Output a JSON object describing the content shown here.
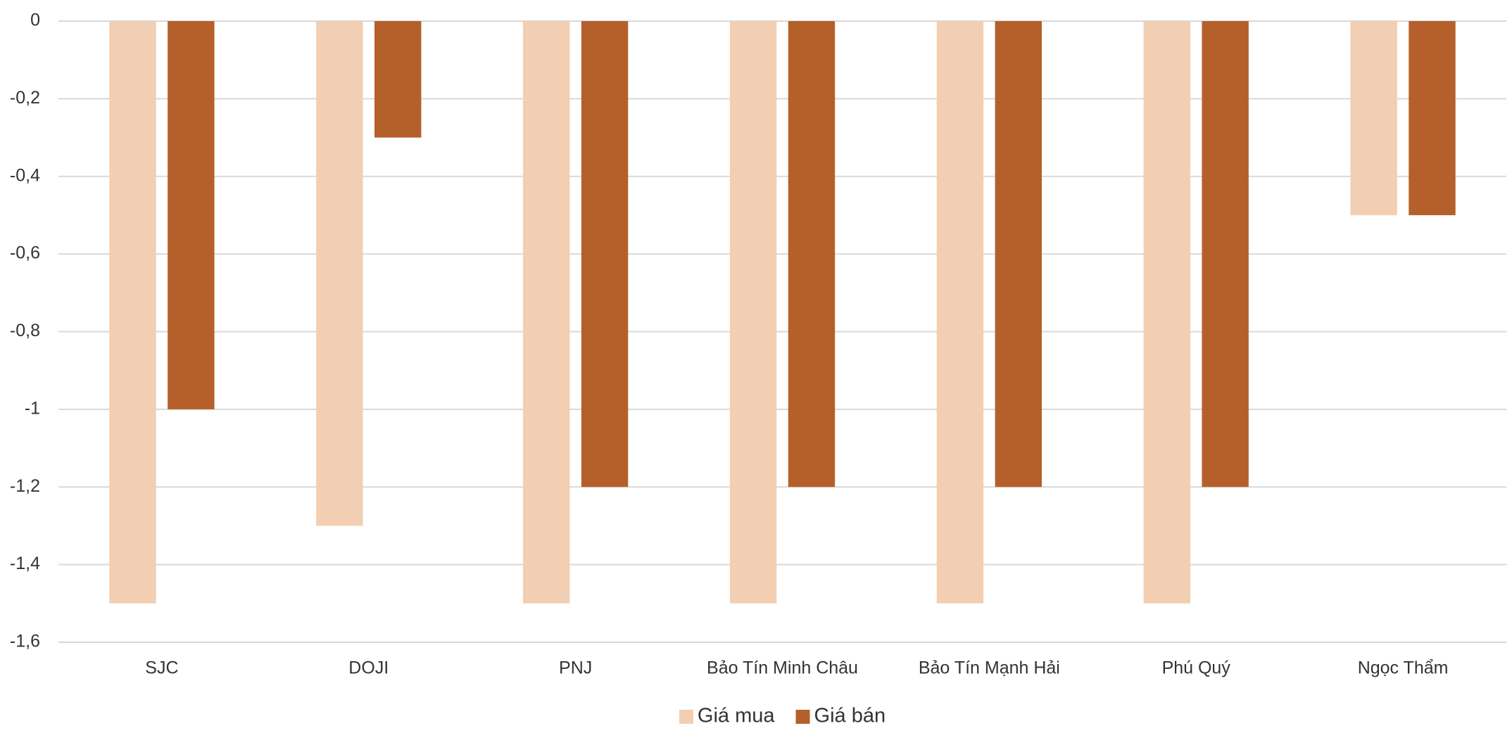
{
  "chart_data": {
    "type": "bar",
    "categories": [
      "SJC",
      "DOJI",
      "PNJ",
      "Bảo Tín Minh Châu",
      "Bảo Tín Mạnh Hải",
      "Phú Quý",
      "Ngọc Thẩm"
    ],
    "series": [
      {
        "name": "Giá mua",
        "color": "#f2cfb2",
        "values": [
          -1.5,
          -1.3,
          -1.5,
          -1.5,
          -1.5,
          -1.5,
          -0.5
        ]
      },
      {
        "name": "Giá bán",
        "color": "#b5602a",
        "values": [
          -1,
          -0.3,
          -1.2,
          -1.2,
          -1.2,
          -1.2,
          -0.5
        ]
      }
    ],
    "ylim": [
      -1.6,
      0
    ],
    "yticks": [
      0,
      {
        "value": -0.2,
        "label": "-0,2"
      },
      {
        "value": -0.4,
        "label": "-0,4"
      },
      {
        "value": -0.6,
        "label": "-0,6"
      },
      {
        "value": -0.8,
        "label": "-0,8"
      },
      -1,
      {
        "value": -1.2,
        "label": "-1,2"
      },
      {
        "value": -1.4,
        "label": "-1,4"
      },
      {
        "value": -1.6,
        "label": "-1,6"
      }
    ],
    "grid": true,
    "legend": "bottom"
  }
}
